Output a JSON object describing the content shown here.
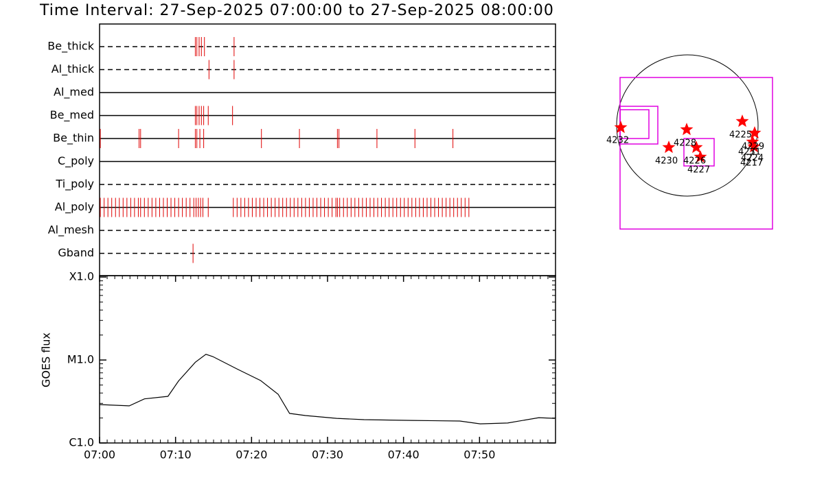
{
  "title": "Time Interval: 27-Sep-2025 07:00:00 to 27-Sep-2025 08:00:00",
  "chart_data": [
    {
      "type": "timeline",
      "xlim": [
        0,
        60
      ],
      "event_color": "#e00000",
      "rows": [
        {
          "name": "Be_thick",
          "style": "dashed",
          "events": [
            12.6,
            12.8,
            13.1,
            13.4,
            13.8,
            17.7
          ]
        },
        {
          "name": "Al_thick",
          "style": "dashed",
          "events": [
            14.4,
            17.7
          ]
        },
        {
          "name": "Al_med",
          "style": "solid",
          "events": []
        },
        {
          "name": "Be_med",
          "style": "solid",
          "events": [
            12.6,
            12.8,
            13.1,
            13.4,
            13.7,
            14.3,
            17.5
          ]
        },
        {
          "name": "Be_thin",
          "style": "solid",
          "events": [
            0.1,
            5.2,
            5.4,
            10.4,
            12.6,
            12.8,
            13.2,
            13.7,
            21.3,
            26.3,
            31.3,
            31.5,
            36.5,
            41.5,
            46.5
          ]
        },
        {
          "name": "C_poly",
          "style": "solid",
          "events": []
        },
        {
          "name": "Ti_poly",
          "style": "dashed",
          "events": []
        },
        {
          "name": "Al_poly",
          "style": "solid",
          "events": [
            0.1,
            0.6,
            1.1,
            1.6,
            2.1,
            2.6,
            3.1,
            3.6,
            4.1,
            4.6,
            5.1,
            5.4,
            5.9,
            6.4,
            6.9,
            7.4,
            7.9,
            8.4,
            8.9,
            9.4,
            9.9,
            10.4,
            10.9,
            11.4,
            11.9,
            12.4,
            12.7,
            13.0,
            13.3,
            13.6,
            14.3,
            17.6,
            18.1,
            18.6,
            19.1,
            19.6,
            20.1,
            20.6,
            21.1,
            21.6,
            22.1,
            22.6,
            23.1,
            23.6,
            24.1,
            24.6,
            25.1,
            25.6,
            26.1,
            26.6,
            27.1,
            27.6,
            28.1,
            28.6,
            29.1,
            29.6,
            30.1,
            30.6,
            31.1,
            31.3,
            31.6,
            32.1,
            32.6,
            33.1,
            33.6,
            34.1,
            34.6,
            35.1,
            35.6,
            36.1,
            36.6,
            37.1,
            37.6,
            38.1,
            38.6,
            39.1,
            39.6,
            40.1,
            40.6,
            41.1,
            41.6,
            42.1,
            42.6,
            43.1,
            43.6,
            44.1,
            44.6,
            45.1,
            45.6,
            46.1,
            46.6,
            47.1,
            47.6,
            48.1,
            48.6
          ]
        },
        {
          "name": "Al_mesh",
          "style": "dashed",
          "events": []
        },
        {
          "name": "Gband",
          "style": "dashed",
          "events": [
            12.3
          ]
        }
      ]
    },
    {
      "type": "line",
      "ylabel": "GOES flux",
      "log": true,
      "color": "#000000",
      "xlim": [
        0,
        60
      ],
      "xticks": [
        {
          "value": 0,
          "label": "07:00"
        },
        {
          "value": 10,
          "label": "07:10"
        },
        {
          "value": 20,
          "label": "07:20"
        },
        {
          "value": 30,
          "label": "07:30"
        },
        {
          "value": 40,
          "label": "07:40"
        },
        {
          "value": 50,
          "label": "07:50"
        }
      ],
      "ylim": [
        1e-06,
        0.0001
      ],
      "yticks": [
        {
          "value": 1e-06,
          "label": "C1.0"
        },
        {
          "value": 1e-05,
          "label": "M1.0"
        },
        {
          "value": 0.0001,
          "label": "X1.0"
        }
      ],
      "x": [
        0,
        3.9,
        5.9,
        9.0,
        10.4,
        12.6,
        14.0,
        14.9,
        18.1,
        21.2,
        23.5,
        25.0,
        27.1,
        31.2,
        34.8,
        41.1,
        47.4,
        50.1,
        53.7,
        57.8,
        59.9
      ],
      "values": [
        2.9e-06,
        2.8e-06,
        3.4e-06,
        3.65e-06,
        5.6e-06,
        9.4e-06,
        1.17e-05,
        1.1e-05,
        7.8e-06,
        5.65e-06,
        3.86e-06,
        2.27e-06,
        2.14e-06,
        1.98e-06,
        1.91e-06,
        1.87e-06,
        1.84e-06,
        1.7e-06,
        1.74e-06,
        2.02e-06,
        1.98e-06
      ]
    }
  ],
  "map": {
    "labels": [
      "4232",
      "4228",
      "4230",
      "4226",
      "4227",
      "4225",
      "4229",
      "4231",
      "4224",
      "4217"
    ]
  }
}
